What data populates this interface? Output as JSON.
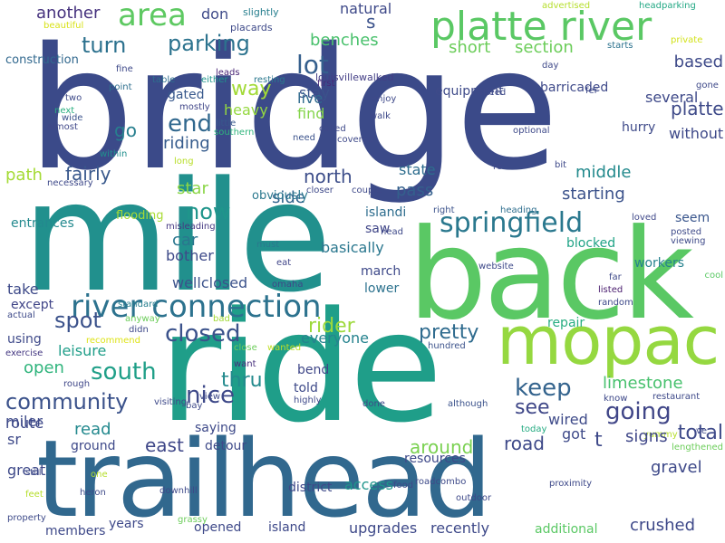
{
  "words": [
    {
      "text": "bridge",
      "color": "#3b4a89"
    },
    {
      "text": "mile",
      "color": "#21908d"
    },
    {
      "text": "back",
      "color": "#5ac864"
    },
    {
      "text": "ride",
      "color": "#1f9e89"
    },
    {
      "text": "trailhead",
      "color": "#31688e"
    },
    {
      "text": "mopac",
      "color": "#95d840"
    },
    {
      "text": "platte river",
      "color": "#5ac864"
    },
    {
      "text": "river connection",
      "color": "#2c728e"
    },
    {
      "text": "springfield",
      "color": "#2a788e"
    },
    {
      "text": "area",
      "color": "#5ec962"
    },
    {
      "text": "parking",
      "color": "#2c738e"
    },
    {
      "text": "lot",
      "color": "#355f8d"
    },
    {
      "text": "turn",
      "color": "#2c718e"
    },
    {
      "text": "benches",
      "color": "#4ac16d"
    },
    {
      "text": "short",
      "color": "#6ccd5a"
    },
    {
      "text": "section",
      "color": "#6ccd5a"
    },
    {
      "text": "another",
      "color": "#46327e"
    },
    {
      "text": "don",
      "color": "#3e4a89"
    },
    {
      "text": "natural",
      "color": "#3e4989"
    },
    {
      "text": "slightly",
      "color": "#277f8e"
    },
    {
      "text": "advertised",
      "color": "#b5de2b"
    },
    {
      "text": "headparking",
      "color": "#22a884"
    },
    {
      "text": "beautiful",
      "color": "#d8e219"
    },
    {
      "text": "s",
      "color": "#3b528b"
    },
    {
      "text": "placards",
      "color": "#3e4a89"
    },
    {
      "text": "louisvillewalked",
      "color": "#433e85"
    },
    {
      "text": "private",
      "color": "#d2e21b"
    },
    {
      "text": "starts",
      "color": "#2c728e"
    },
    {
      "text": "way",
      "color": "#a2da37"
    },
    {
      "text": "end",
      "color": "#31688e"
    },
    {
      "text": "riding",
      "color": "#365c8d"
    },
    {
      "text": "heavy",
      "color": "#95d840"
    },
    {
      "text": "gated",
      "color": "#38588c"
    },
    {
      "text": "mostly",
      "color": "#404688"
    },
    {
      "text": "stay",
      "color": "#3b528b"
    },
    {
      "text": "live",
      "color": "#306a8e"
    },
    {
      "text": "find",
      "color": "#84d44b"
    },
    {
      "text": "first",
      "color": "#482878"
    },
    {
      "text": "resting",
      "color": "#2a788e"
    },
    {
      "text": "either",
      "color": "#1f958b"
    },
    {
      "text": "leads",
      "color": "#482475"
    },
    {
      "text": "table",
      "color": "#2e6e8e"
    },
    {
      "text": "fine",
      "color": "#3e4989"
    },
    {
      "text": "point",
      "color": "#2e6f8e"
    },
    {
      "text": "two",
      "color": "#3e4a89"
    },
    {
      "text": "next",
      "color": "#29af7f"
    },
    {
      "text": "wide",
      "color": "#3b528b"
    },
    {
      "text": "almost",
      "color": "#3f4788"
    },
    {
      "text": "little",
      "color": "#38588c"
    },
    {
      "text": "southern",
      "color": "#2fb47c"
    },
    {
      "text": "within",
      "color": "#218f8d"
    },
    {
      "text": "long",
      "color": "#b8de29"
    },
    {
      "text": "need",
      "color": "#3b528b"
    },
    {
      "text": "construction",
      "color": "#31688e"
    },
    {
      "text": "go",
      "color": "#277f8e"
    },
    {
      "text": "path",
      "color": "#a5db36"
    },
    {
      "text": "fairly",
      "color": "#38588c"
    },
    {
      "text": "north",
      "color": "#3d4e8a"
    },
    {
      "text": "state",
      "color": "#2e6d8e"
    },
    {
      "text": "islandi",
      "color": "#2e6d8e"
    },
    {
      "text": "right",
      "color": "#3b528b"
    },
    {
      "text": "heading",
      "color": "#2e6e8e"
    },
    {
      "text": "loved",
      "color": "#3f4889"
    },
    {
      "text": "star",
      "color": "#8bd646"
    },
    {
      "text": "now",
      "color": "#1f958b"
    },
    {
      "text": "side",
      "color": "#32658e"
    },
    {
      "text": "pass",
      "color": "#34608d"
    },
    {
      "text": "starting",
      "color": "#3b528b"
    },
    {
      "text": "middle",
      "color": "#238a8d"
    },
    {
      "text": "seem",
      "color": "#39558c"
    },
    {
      "text": "blocked",
      "color": "#20a386"
    },
    {
      "text": "viewing",
      "color": "#3e4a89"
    },
    {
      "text": "posted",
      "color": "#3e4a89"
    },
    {
      "text": "flooding",
      "color": "#a8db34"
    },
    {
      "text": "entrances",
      "color": "#23898e"
    },
    {
      "text": "car",
      "color": "#2a768e"
    },
    {
      "text": "bother",
      "color": "#3e4a89"
    },
    {
      "text": "obviously",
      "color": "#2a788e"
    },
    {
      "text": "misleading",
      "color": "#453882"
    },
    {
      "text": "must",
      "color": "#2a788e"
    },
    {
      "text": "eat",
      "color": "#404588"
    },
    {
      "text": "omaha",
      "color": "#3f4788"
    },
    {
      "text": "basically",
      "color": "#2a778e"
    },
    {
      "text": "saw",
      "color": "#404688"
    },
    {
      "text": "march",
      "color": "#3e4989"
    },
    {
      "text": "lower",
      "color": "#2c728e"
    },
    {
      "text": "workers",
      "color": "#26828e"
    },
    {
      "text": "far",
      "color": "#3e4a89"
    },
    {
      "text": "listed",
      "color": "#481b6d"
    },
    {
      "text": "random",
      "color": "#3e4989"
    },
    {
      "text": "cool",
      "color": "#5ac864"
    },
    {
      "text": "take",
      "color": "#3e4a89"
    },
    {
      "text": "except",
      "color": "#404588"
    },
    {
      "text": "wellclosed",
      "color": "#3b528b"
    },
    {
      "text": "standard",
      "color": "#277f8e"
    },
    {
      "text": "actual",
      "color": "#3e4a89"
    },
    {
      "text": "anyway",
      "color": "#6ccd5a"
    },
    {
      "text": "didn",
      "color": "#3e4989"
    },
    {
      "text": "bad",
      "color": "#a2da37"
    },
    {
      "text": "using",
      "color": "#3e4989"
    },
    {
      "text": "recommend",
      "color": "#dde318"
    },
    {
      "text": "leisure",
      "color": "#1f9e89"
    },
    {
      "text": "spot",
      "color": "#3b528b"
    },
    {
      "text": "closed",
      "color": "#3b528b"
    },
    {
      "text": "rider",
      "color": "#9dd93b"
    },
    {
      "text": "everyone",
      "color": "#25838e"
    },
    {
      "text": "pretty",
      "color": "#2f6b8e"
    },
    {
      "text": "keep",
      "color": "#33638d"
    },
    {
      "text": "limestone",
      "color": "#48c16e"
    },
    {
      "text": "going",
      "color": "#404688"
    },
    {
      "text": "see",
      "color": "#3f4788"
    },
    {
      "text": "repair",
      "color": "#27ad81"
    },
    {
      "text": "exercise",
      "color": "#453882"
    },
    {
      "text": "close",
      "color": "#6ccd5a"
    },
    {
      "text": "wanted",
      "color": "#c0df25"
    },
    {
      "text": "hundred",
      "color": "#3b528b"
    },
    {
      "text": "open",
      "color": "#2fb47c"
    },
    {
      "text": "south",
      "color": "#1f9f88"
    },
    {
      "text": "bend",
      "color": "#3f4788"
    },
    {
      "text": "want",
      "color": "#472f7d"
    },
    {
      "text": "thru",
      "color": "#238a8d"
    },
    {
      "text": "told",
      "color": "#3e4a89"
    },
    {
      "text": "community",
      "color": "#3b528b"
    },
    {
      "text": "nice",
      "color": "#3e4989"
    },
    {
      "text": "route",
      "color": "#3e4989"
    },
    {
      "text": "rough",
      "color": "#3f4788"
    },
    {
      "text": "visiting",
      "color": "#3e4989"
    },
    {
      "text": "view",
      "color": "#3e4a89"
    },
    {
      "text": "bay",
      "color": "#3e4a89"
    },
    {
      "text": "highly",
      "color": "#3e4989"
    },
    {
      "text": "done",
      "color": "#3e4989"
    },
    {
      "text": "although",
      "color": "#3b528b"
    },
    {
      "text": "know",
      "color": "#3e4989"
    },
    {
      "text": "restaurant",
      "color": "#3e4989"
    },
    {
      "text": "miler",
      "color": "#3e4a89"
    },
    {
      "text": "read",
      "color": "#23898e"
    },
    {
      "text": "saying",
      "color": "#3e4a89"
    },
    {
      "text": "east",
      "color": "#3f4788"
    },
    {
      "text": "detour",
      "color": "#3e4a89"
    },
    {
      "text": "wired",
      "color": "#3e4a89"
    },
    {
      "text": "got",
      "color": "#3e4a89"
    },
    {
      "text": "today",
      "color": "#25ab82"
    },
    {
      "text": "yummy",
      "color": "#b5de2b"
    },
    {
      "text": "sr",
      "color": "#3e4989"
    },
    {
      "text": "ground",
      "color": "#3e4989"
    },
    {
      "text": "around",
      "color": "#7ad151"
    },
    {
      "text": "road",
      "color": "#3e4989"
    },
    {
      "text": "t",
      "color": "#3e4989"
    },
    {
      "text": "signs",
      "color": "#3f4788"
    },
    {
      "text": "gravel",
      "color": "#3e4989"
    },
    {
      "text": "total",
      "color": "#3e4a89"
    },
    {
      "text": "ve",
      "color": "#3e4989"
    },
    {
      "text": "lengthened",
      "color": "#6ccd5a"
    },
    {
      "text": "great",
      "color": "#3e4989"
    },
    {
      "text": "one",
      "color": "#b5de2b"
    },
    {
      "text": "still",
      "color": "#3e4a89"
    },
    {
      "text": "feet",
      "color": "#b5de2b"
    },
    {
      "text": "property",
      "color": "#3e4a89"
    },
    {
      "text": "members",
      "color": "#3e4989"
    },
    {
      "text": "years",
      "color": "#3e4989"
    },
    {
      "text": "downhill",
      "color": "#3e4989"
    },
    {
      "text": "grassy",
      "color": "#6ccd5a"
    },
    {
      "text": "heron",
      "color": "#3e4a89"
    },
    {
      "text": "opened",
      "color": "#3e4989"
    },
    {
      "text": "island",
      "color": "#3e4989"
    },
    {
      "text": "district",
      "color": "#3e4989"
    },
    {
      "text": "access",
      "color": "#1f958b"
    },
    {
      "text": "resources",
      "color": "#3e4989"
    },
    {
      "text": "food",
      "color": "#3e4989"
    },
    {
      "text": "roadcombo",
      "color": "#3e4a89"
    },
    {
      "text": "upgrades",
      "color": "#3e4989"
    },
    {
      "text": "recently",
      "color": "#3e4989"
    },
    {
      "text": "outdoor",
      "color": "#3e4989"
    },
    {
      "text": "additional",
      "color": "#5ac864"
    },
    {
      "text": "proximity",
      "color": "#3e4989"
    },
    {
      "text": "crushed",
      "color": "#3e4989"
    },
    {
      "text": "platte",
      "color": "#3e4a89"
    },
    {
      "text": "based",
      "color": "#3e4a89"
    },
    {
      "text": "without",
      "color": "#3e4989"
    },
    {
      "text": "several",
      "color": "#3e4989"
    },
    {
      "text": "barricaded",
      "color": "#3e4989"
    },
    {
      "text": "hurry",
      "color": "#3e4a89"
    },
    {
      "text": "equipment",
      "color": "#3e4a89"
    },
    {
      "text": "enjoy",
      "color": "#3e4989"
    },
    {
      "text": "walk",
      "color": "#3e4989"
    },
    {
      "text": "optional",
      "color": "#3e4989"
    },
    {
      "text": "speed",
      "color": "#3e4a89"
    },
    {
      "text": "day",
      "color": "#3e4989"
    },
    {
      "text": "fer",
      "color": "#3e4989"
    },
    {
      "text": "gone",
      "color": "#3e4989"
    },
    {
      "text": "bit",
      "color": "#3e4989"
    },
    {
      "text": "re",
      "color": "#3e4989"
    },
    {
      "text": "couple",
      "color": "#3e4989"
    },
    {
      "text": "closer",
      "color": "#3e4989"
    },
    {
      "text": "covered",
      "color": "#3e4989"
    },
    {
      "text": "called",
      "color": "#3e4989"
    },
    {
      "text": "necessary",
      "color": "#3e4989"
    },
    {
      "text": "head",
      "color": "#3e4989"
    },
    {
      "text": "website",
      "color": "#3e4989"
    }
  ]
}
